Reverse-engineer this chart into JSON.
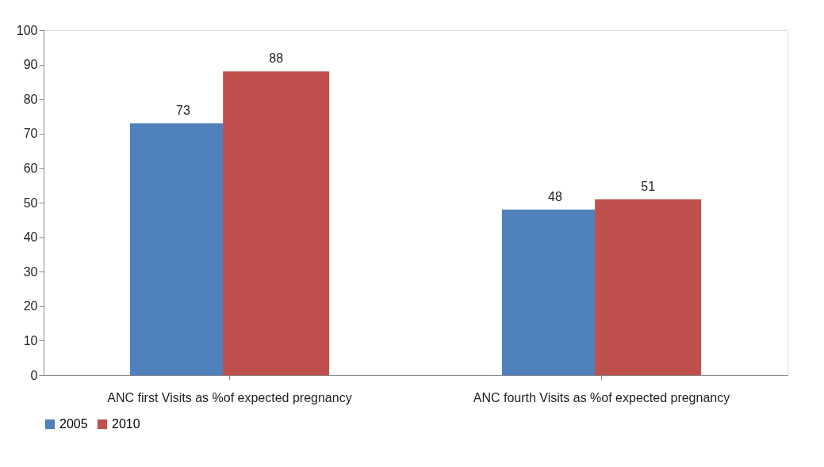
{
  "chart_data": {
    "type": "bar",
    "categories": [
      "ANC first  Visits as %of expected pregnancy",
      "ANC fourth  Visits as %of expected pregnancy"
    ],
    "series": [
      {
        "name": "2005",
        "color": "#4f81bd",
        "values": [
          73,
          48
        ]
      },
      {
        "name": "2010",
        "color": "#c0504d",
        "values": [
          88,
          51
        ]
      }
    ],
    "ylim": [
      0,
      100
    ],
    "yticks": [
      0,
      10,
      20,
      30,
      40,
      50,
      60,
      70,
      80,
      90,
      100
    ],
    "grid": false,
    "legend": "bottom",
    "data_labels": true
  }
}
